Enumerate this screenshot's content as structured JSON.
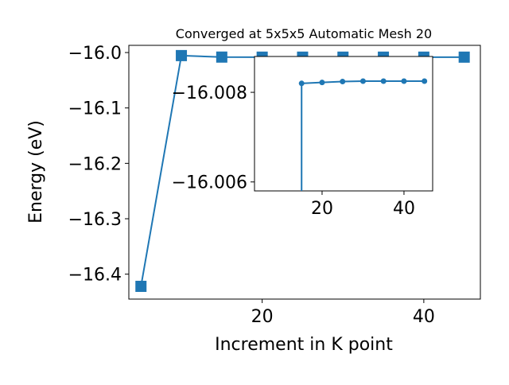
{
  "chart_data": [
    {
      "type": "line",
      "title": "Converged at 5x5x5 Automatic Mesh 20",
      "xlabel": "Increment in K point",
      "ylabel": "Energy (eV)",
      "xlim": [
        3.5,
        47
      ],
      "ylim": [
        -16.445,
        -15.987
      ],
      "xticks": [
        20,
        40
      ],
      "xtick_labels": [
        "20",
        "40"
      ],
      "yticks": [
        -16.4,
        -16.3,
        -16.2,
        -16.1,
        -16.0
      ],
      "ytick_labels": [
        "−16.4",
        "−16.3",
        "−16.2",
        "−16.1",
        "−16.0"
      ],
      "grid": false,
      "color": "#1f77b4",
      "marker": "square",
      "series": [
        {
          "x": [
            5,
            10,
            15,
            20,
            25,
            30,
            35,
            40,
            45
          ],
          "values": [
            -16.422,
            -16.0055,
            -16.0082,
            -16.0083,
            -16.0083,
            -16.0083,
            -16.0083,
            -16.0083,
            -16.0083
          ]
        }
      ]
    },
    {
      "type": "line",
      "title": "",
      "inset": true,
      "xlabel": "",
      "ylabel": "",
      "xlim": [
        3.5,
        47
      ],
      "ylim": [
        -16.0058,
        -16.0088
      ],
      "y_inverted": true,
      "xticks": [
        20,
        40
      ],
      "xtick_labels": [
        "20",
        "40"
      ],
      "yticks": [
        -16.008,
        -16.006
      ],
      "ytick_labels": [
        "−16.008",
        "−16.006"
      ],
      "grid": false,
      "color": "#1f77b4",
      "marker": "circle",
      "series": [
        {
          "x": [
            15,
            15,
            20,
            25,
            30,
            35,
            40,
            45
          ],
          "values": [
            -16.0058,
            -16.0082,
            -16.00822,
            -16.00824,
            -16.00825,
            -16.00825,
            -16.00825,
            -16.00825
          ]
        }
      ]
    }
  ]
}
